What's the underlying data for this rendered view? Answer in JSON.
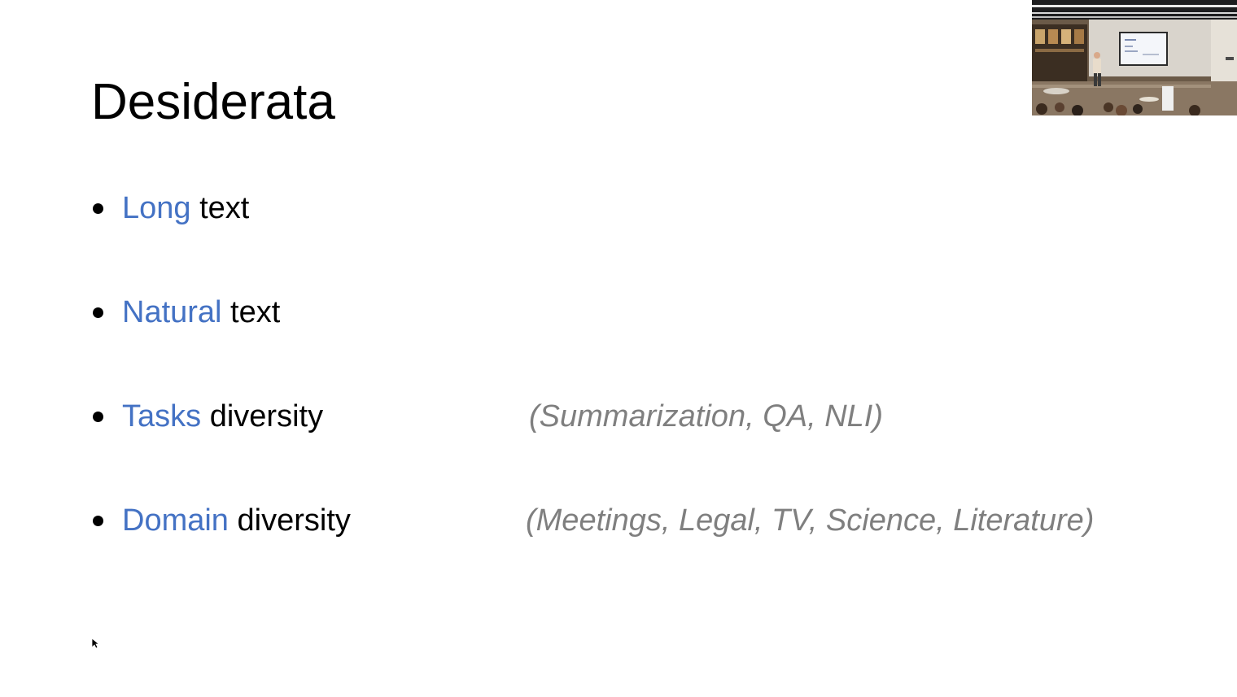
{
  "slide": {
    "title": "Desiderata",
    "bullets": [
      {
        "accent": "Long",
        "rest": " text",
        "aside": ""
      },
      {
        "accent": "Natural",
        "rest": " text",
        "aside": ""
      },
      {
        "accent": "Tasks",
        "rest": " diversity",
        "aside": "(Summarization, QA, NLI)"
      },
      {
        "accent": "Domain",
        "rest": " diversity",
        "aside": "(Meetings, Legal, TV, Science, Literature)"
      }
    ]
  },
  "colors": {
    "accent": "#4472c4",
    "text": "#000000",
    "aside": "#7f7f7f",
    "background": "#ffffff"
  },
  "icons": {
    "cursor": "mouse-pointer-icon",
    "webcam": "speaker-video-thumbnail"
  }
}
